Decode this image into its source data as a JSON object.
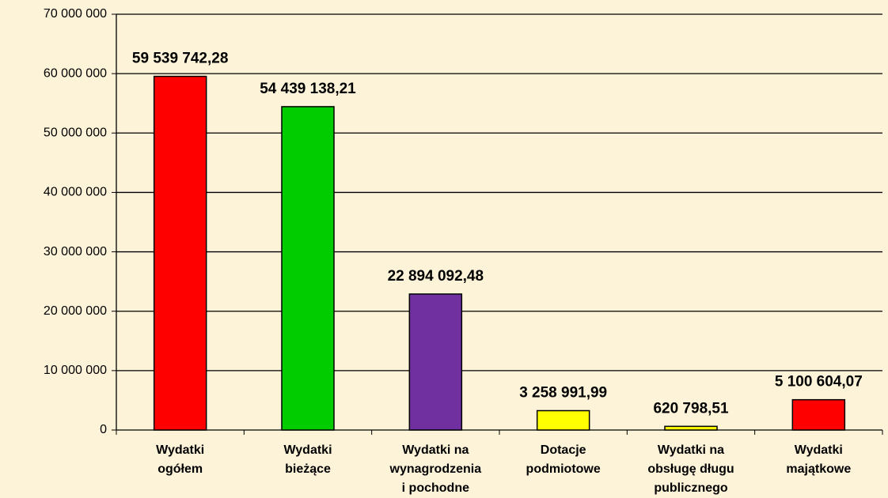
{
  "chart_data": {
    "type": "bar",
    "categories": [
      [
        "Wydatki",
        "ogółem"
      ],
      [
        "Wydatki",
        "bieżące"
      ],
      [
        "Wydatki na",
        "wynagrodzenia",
        "i pochodne"
      ],
      [
        "Dotacje",
        "podmiotowe"
      ],
      [
        "Wydatki na",
        "obsługę długu",
        "publicznego"
      ],
      [
        "Wydatki",
        "majątkowe"
      ]
    ],
    "values": [
      59539742.28,
      54439138.21,
      22894092.48,
      3258991.99,
      620798.51,
      5100604.07
    ],
    "value_labels": [
      "59 539 742,28",
      "54 439 138,21",
      "22 894 092,48",
      "3 258 991,99",
      "620 798,51",
      "5 100 604,07"
    ],
    "colors": [
      "#ff0000",
      "#00cc00",
      "#7030a0",
      "#ffff00",
      "#ffff00",
      "#ff0000"
    ],
    "ylim": [
      0,
      70000000
    ],
    "yticks": [
      0,
      {
        "value": 10000000,
        "label": "10 000 000"
      },
      {
        "value": 20000000,
        "label": "20 000 000"
      },
      {
        "value": 30000000,
        "label": "30 000 000"
      },
      {
        "value": 40000000,
        "label": "40 000 000"
      },
      {
        "value": 50000000,
        "label": "50 000 000"
      },
      {
        "value": 60000000,
        "label": "60 000 000"
      },
      {
        "value": 70000000,
        "label": "70 000 000"
      }
    ],
    "grid": true
  }
}
